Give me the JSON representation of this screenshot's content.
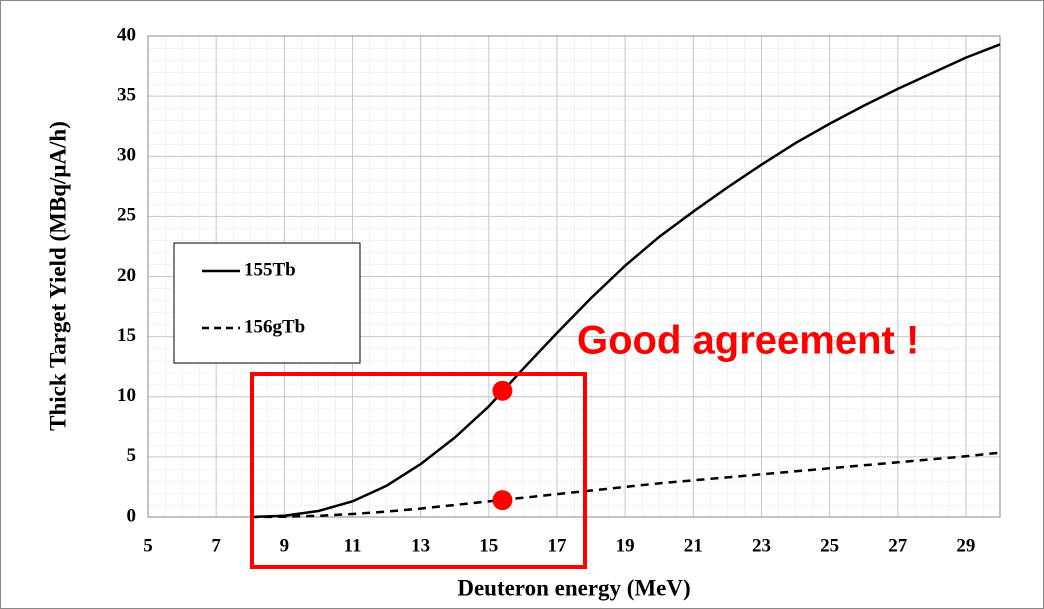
{
  "chart_data": {
    "type": "line",
    "xlabel": "Deuteron energy (MeV)",
    "ylabel": "Thick Target Yield (MBq/μA/h)",
    "x": [
      8,
      9,
      10,
      11,
      12,
      13,
      14,
      15,
      16,
      17,
      18,
      19,
      20,
      21,
      22,
      23,
      24,
      25,
      26,
      27,
      28,
      29,
      30
    ],
    "series": [
      {
        "name": "155Tb",
        "color": "#000000",
        "dash": "solid",
        "values": [
          0,
          0.1,
          0.5,
          1.3,
          2.6,
          4.4,
          6.6,
          9.2,
          12.3,
          15.3,
          18.2,
          20.9,
          23.3,
          25.4,
          27.4,
          29.3,
          31.1,
          32.7,
          34.2,
          35.6,
          36.9,
          38.2,
          39.3
        ]
      },
      {
        "name": "156gTb",
        "color": "#000000",
        "dash": "dashed",
        "values": [
          0,
          0.02,
          0.1,
          0.25,
          0.45,
          0.7,
          1.0,
          1.3,
          1.6,
          1.9,
          2.2,
          2.5,
          2.8,
          3.05,
          3.3,
          3.55,
          3.8,
          4.05,
          4.3,
          4.55,
          4.8,
          5.05,
          5.35
        ]
      }
    ],
    "points": {
      "color": "#ff0000",
      "x": [
        15.4,
        15.4
      ],
      "y": [
        10.5,
        1.4
      ]
    },
    "annotation": "Good agreement !",
    "xlim": [
      5,
      30
    ],
    "xticks": [
      5,
      7,
      9,
      11,
      13,
      15,
      17,
      19,
      21,
      23,
      25,
      27,
      29
    ],
    "ylim": [
      0,
      40
    ],
    "yticks": [
      0,
      5,
      10,
      15,
      20,
      25,
      30,
      35,
      40
    ],
    "grid": true
  }
}
